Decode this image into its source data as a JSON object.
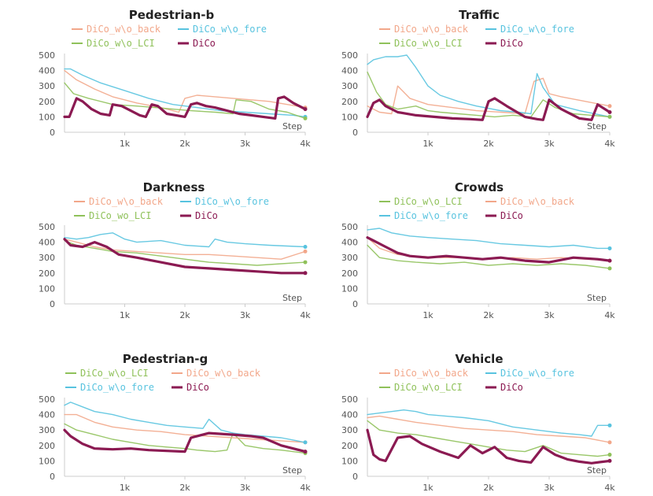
{
  "colors": {
    "DiCo_w\\o_back": "#f2a78a",
    "DiCo_w\\o_fore": "#58c3df",
    "DiCo_w\\o_LCI": "#8fc15a",
    "DiCo_wo_LCI": "#8fc15a",
    "DiCo": "#8b1a52"
  },
  "chart_data": [
    {
      "type": "line",
      "title": "Pedestrian-b",
      "legend": [
        [
          "DiCo_w\\o_back",
          "DiCo_w\\o_fore"
        ],
        [
          "DiCo_w\\o_LCI",
          "DiCo"
        ]
      ],
      "xlabel": "Step",
      "xlim": [
        0,
        4000
      ],
      "ylim": [
        0,
        500
      ],
      "xticks": [
        1000,
        2000,
        3000,
        4000
      ],
      "xtick_labels": [
        "1k",
        "2k",
        "3k",
        "4k"
      ],
      "yticks": [
        0,
        100,
        200,
        300,
        400,
        500
      ],
      "series": [
        {
          "name": "DiCo_w\\o_back",
          "x": [
            0,
            200,
            500,
            800,
            1200,
            1600,
            1900,
            2000,
            2200,
            2500,
            2800,
            3100,
            3400,
            3700,
            4000
          ],
          "y": [
            400,
            340,
            280,
            230,
            190,
            160,
            130,
            220,
            240,
            230,
            220,
            210,
            200,
            180,
            160
          ]
        },
        {
          "name": "DiCo_w\\o_fore",
          "x": [
            0,
            100,
            300,
            600,
            1000,
            1400,
            1800,
            2200,
            2600,
            3000,
            3400,
            3800,
            4000
          ],
          "y": [
            410,
            410,
            370,
            320,
            270,
            220,
            180,
            160,
            140,
            130,
            120,
            110,
            100
          ]
        },
        {
          "name": "DiCo_w\\o_LCI",
          "x": [
            0,
            150,
            400,
            800,
            1200,
            1500,
            1800,
            2100,
            2500,
            2800,
            2850,
            3100,
            3400,
            3700,
            4000
          ],
          "y": [
            320,
            250,
            220,
            180,
            170,
            160,
            150,
            140,
            130,
            120,
            210,
            200,
            150,
            130,
            90
          ]
        },
        {
          "name": "DiCo",
          "x": [
            0,
            80,
            200,
            300,
            450,
            600,
            750,
            800,
            950,
            1100,
            1250,
            1350,
            1450,
            1550,
            1700,
            1850,
            2000,
            2100,
            2200,
            2350,
            2500,
            2700,
            2900,
            3100,
            3300,
            3500,
            3550,
            3650,
            3800,
            4000
          ],
          "y": [
            100,
            100,
            220,
            200,
            150,
            120,
            110,
            180,
            170,
            140,
            110,
            100,
            180,
            170,
            120,
            110,
            100,
            180,
            190,
            170,
            160,
            140,
            120,
            110,
            100,
            90,
            220,
            230,
            190,
            150
          ]
        }
      ]
    },
    {
      "type": "line",
      "title": "Traffic",
      "legend": [
        [
          "DiCo_w\\o_back",
          "DiCo_w\\o_fore"
        ],
        [
          "DiCo_w\\o_LCI",
          "DiCo"
        ]
      ],
      "xlabel": "Step",
      "xlim": [
        0,
        4000
      ],
      "ylim": [
        0,
        500
      ],
      "xticks": [
        1000,
        2000,
        3000,
        4000
      ],
      "xtick_labels": [
        "1k",
        "2k",
        "3k",
        "4k"
      ],
      "yticks": [
        0,
        100,
        200,
        300,
        400,
        500
      ],
      "series": [
        {
          "name": "DiCo_w\\o_back",
          "x": [
            0,
            200,
            400,
            500,
            700,
            1000,
            1400,
            1800,
            2200,
            2600,
            2750,
            2900,
            3000,
            3200,
            3600,
            4000
          ],
          "y": [
            170,
            130,
            120,
            300,
            220,
            180,
            160,
            140,
            130,
            120,
            330,
            350,
            250,
            230,
            200,
            170
          ]
        },
        {
          "name": "DiCo_w\\o_fore",
          "x": [
            0,
            100,
            300,
            500,
            650,
            800,
            1000,
            1200,
            1500,
            1800,
            2200,
            2500,
            2700,
            2800,
            2900,
            3100,
            3500,
            4000
          ],
          "y": [
            440,
            470,
            490,
            490,
            500,
            420,
            300,
            240,
            200,
            170,
            140,
            130,
            120,
            380,
            290,
            180,
            140,
            100
          ]
        },
        {
          "name": "DiCo_w\\o_LCI",
          "x": [
            0,
            150,
            300,
            500,
            800,
            1000,
            1200,
            1500,
            1800,
            2100,
            2400,
            2700,
            2900,
            3100,
            3400,
            3700,
            4000
          ],
          "y": [
            390,
            260,
            180,
            150,
            170,
            140,
            130,
            120,
            110,
            100,
            110,
            100,
            210,
            160,
            120,
            110,
            100
          ]
        },
        {
          "name": "DiCo",
          "x": [
            0,
            100,
            200,
            300,
            500,
            800,
            1100,
            1400,
            1700,
            1900,
            2000,
            2100,
            2300,
            2600,
            2800,
            2900,
            3000,
            3200,
            3500,
            3700,
            3800,
            4000
          ],
          "y": [
            100,
            190,
            210,
            170,
            130,
            110,
            100,
            90,
            85,
            80,
            200,
            220,
            170,
            100,
            85,
            80,
            210,
            150,
            90,
            80,
            180,
            130
          ]
        }
      ]
    },
    {
      "type": "line",
      "title": "Darkness",
      "legend": [
        [
          "DiCo_w\\o_back",
          "DiCo_w\\o_fore"
        ],
        [
          "DiCo_wo_LCI",
          "DiCo"
        ]
      ],
      "xlabel": "Step",
      "xlim": [
        0,
        4000
      ],
      "ylim": [
        0,
        500
      ],
      "xticks": [
        1000,
        2000,
        3000,
        4000
      ],
      "xtick_labels": [
        "1k",
        "2k",
        "3k",
        "4k"
      ],
      "yticks": [
        0,
        100,
        200,
        300,
        400,
        500
      ],
      "series": [
        {
          "name": "DiCo_w\\o_back",
          "x": [
            0,
            200,
            500,
            800,
            1200,
            1600,
            2000,
            2400,
            2800,
            3200,
            3600,
            4000
          ],
          "y": [
            420,
            400,
            370,
            350,
            340,
            330,
            320,
            320,
            310,
            300,
            290,
            340
          ]
        },
        {
          "name": "DiCo_w\\o_fore",
          "x": [
            0,
            200,
            400,
            600,
            800,
            1000,
            1200,
            1600,
            2000,
            2400,
            2500,
            2700,
            3000,
            3400,
            4000
          ],
          "y": [
            430,
            420,
            430,
            450,
            460,
            420,
            400,
            410,
            380,
            370,
            420,
            400,
            390,
            380,
            370
          ]
        },
        {
          "name": "DiCo_wo_LCI",
          "x": [
            0,
            200,
            500,
            800,
            1200,
            1600,
            2000,
            2400,
            2800,
            3200,
            3600,
            4000
          ],
          "y": [
            410,
            380,
            360,
            340,
            330,
            310,
            290,
            270,
            260,
            250,
            260,
            270
          ]
        },
        {
          "name": "DiCo",
          "x": [
            0,
            100,
            300,
            500,
            700,
            900,
            1200,
            1600,
            2000,
            2400,
            2800,
            3200,
            3600,
            4000
          ],
          "y": [
            420,
            380,
            370,
            400,
            370,
            320,
            300,
            270,
            240,
            230,
            220,
            210,
            200,
            200
          ]
        }
      ]
    },
    {
      "type": "line",
      "title": "Crowds",
      "legend": [
        [
          "DiCo_w\\o_LCI",
          "DiCo_w\\o_back"
        ],
        [
          "DiCo_w\\o_fore",
          "DiCo"
        ]
      ],
      "xlabel": "Step",
      "xlim": [
        0,
        4000
      ],
      "ylim": [
        0,
        500
      ],
      "xticks": [
        1000,
        2000,
        3000,
        4000
      ],
      "xtick_labels": [
        "1k",
        "2k",
        "3k",
        "4k"
      ],
      "yticks": [
        0,
        100,
        200,
        300,
        400,
        500
      ],
      "series": [
        {
          "name": "DiCo_w\\o_LCI",
          "x": [
            0,
            200,
            500,
            800,
            1200,
            1600,
            2000,
            2400,
            2800,
            3200,
            3600,
            4000
          ],
          "y": [
            380,
            300,
            280,
            270,
            260,
            270,
            250,
            260,
            250,
            260,
            250,
            230
          ]
        },
        {
          "name": "DiCo_w\\o_back",
          "x": [
            0,
            200,
            500,
            800,
            1200,
            1600,
            2000,
            2400,
            2800,
            3200,
            3600,
            4000
          ],
          "y": [
            430,
            360,
            320,
            310,
            300,
            300,
            290,
            300,
            290,
            300,
            290,
            280
          ]
        },
        {
          "name": "DiCo_w\\o_fore",
          "x": [
            0,
            200,
            400,
            700,
            1000,
            1400,
            1800,
            2200,
            2600,
            3000,
            3400,
            3800,
            4000
          ],
          "y": [
            480,
            490,
            460,
            440,
            430,
            420,
            410,
            390,
            380,
            370,
            380,
            360,
            360
          ]
        },
        {
          "name": "DiCo",
          "x": [
            0,
            100,
            300,
            500,
            700,
            1000,
            1300,
            1600,
            1900,
            2200,
            2600,
            3000,
            3400,
            3800,
            4000
          ],
          "y": [
            430,
            410,
            370,
            330,
            310,
            300,
            310,
            300,
            290,
            300,
            280,
            270,
            300,
            290,
            280
          ]
        }
      ]
    },
    {
      "type": "line",
      "title": "Pedestrian-g",
      "legend": [
        [
          "DiCo_w\\o_LCI",
          "DiCo_w\\o_back"
        ],
        [
          "DiCo_w\\o_fore",
          "DiCo"
        ]
      ],
      "xlabel": "Step",
      "xlim": [
        0,
        4000
      ],
      "ylim": [
        0,
        500
      ],
      "xticks": [
        1000,
        2000,
        3000,
        4000
      ],
      "xtick_labels": [
        "1k",
        "2k",
        "3k",
        "4k"
      ],
      "yticks": [
        0,
        100,
        200,
        300,
        400,
        500
      ],
      "series": [
        {
          "name": "DiCo_w\\o_LCI",
          "x": [
            0,
            200,
            500,
            800,
            1100,
            1400,
            1700,
            2000,
            2200,
            2500,
            2700,
            2800,
            3000,
            3300,
            3600,
            4000
          ],
          "y": [
            340,
            300,
            270,
            240,
            220,
            200,
            190,
            180,
            170,
            160,
            170,
            280,
            200,
            180,
            170,
            150
          ]
        },
        {
          "name": "DiCo_w\\o_back",
          "x": [
            0,
            200,
            500,
            800,
            1200,
            1600,
            2000,
            2400,
            2800,
            3200,
            3600,
            4000
          ],
          "y": [
            400,
            400,
            350,
            320,
            300,
            290,
            270,
            260,
            250,
            240,
            230,
            220
          ]
        },
        {
          "name": "DiCo_w\\o_fore",
          "x": [
            0,
            100,
            300,
            500,
            800,
            1100,
            1400,
            1700,
            2000,
            2300,
            2400,
            2600,
            2800,
            3000,
            3300,
            3600,
            4000
          ],
          "y": [
            460,
            480,
            450,
            420,
            400,
            370,
            350,
            330,
            320,
            310,
            370,
            300,
            280,
            270,
            260,
            250,
            220
          ]
        },
        {
          "name": "DiCo",
          "x": [
            0,
            100,
            300,
            500,
            800,
            1100,
            1400,
            1700,
            2000,
            2100,
            2400,
            2800,
            3100,
            3300,
            3600,
            4000
          ],
          "y": [
            300,
            260,
            210,
            180,
            175,
            180,
            170,
            165,
            160,
            250,
            280,
            270,
            260,
            250,
            200,
            160
          ]
        }
      ]
    },
    {
      "type": "line",
      "title": "Vehicle",
      "legend": [
        [
          "DiCo_w\\o_back",
          "DiCo_w\\o_fore"
        ],
        [
          "DiCo_w\\o_LCI",
          "DiCo"
        ]
      ],
      "xlabel": "Step",
      "xlim": [
        0,
        4000
      ],
      "ylim": [
        0,
        500
      ],
      "xticks": [
        1000,
        2000,
        3000,
        4000
      ],
      "xtick_labels": [
        "1k",
        "2k",
        "3k",
        "4k"
      ],
      "yticks": [
        0,
        100,
        200,
        300,
        400,
        500
      ],
      "series": [
        {
          "name": "DiCo_w\\o_back",
          "x": [
            0,
            200,
            500,
            800,
            1200,
            1600,
            2000,
            2400,
            2800,
            3200,
            3600,
            4000
          ],
          "y": [
            380,
            390,
            370,
            350,
            330,
            310,
            300,
            290,
            270,
            260,
            250,
            220
          ]
        },
        {
          "name": "DiCo_w\\o_fore",
          "x": [
            0,
            200,
            400,
            600,
            800,
            1000,
            1300,
            1600,
            2000,
            2400,
            2800,
            3200,
            3500,
            3700,
            3800,
            4000
          ],
          "y": [
            400,
            410,
            420,
            430,
            420,
            400,
            390,
            380,
            360,
            320,
            300,
            280,
            270,
            260,
            330,
            330
          ]
        },
        {
          "name": "DiCo_w\\o_LCI",
          "x": [
            0,
            200,
            500,
            800,
            1100,
            1400,
            1700,
            2000,
            2300,
            2600,
            2900,
            3200,
            3500,
            3800,
            4000
          ],
          "y": [
            360,
            300,
            280,
            270,
            250,
            230,
            210,
            190,
            170,
            160,
            200,
            150,
            140,
            130,
            140
          ]
        },
        {
          "name": "DiCo",
          "x": [
            0,
            100,
            200,
            300,
            500,
            700,
            900,
            1200,
            1500,
            1700,
            1900,
            2100,
            2300,
            2500,
            2700,
            2900,
            3100,
            3300,
            3500,
            3700,
            4000
          ],
          "y": [
            300,
            140,
            110,
            100,
            250,
            260,
            210,
            160,
            120,
            200,
            150,
            190,
            120,
            100,
            90,
            190,
            140,
            110,
            95,
            85,
            100
          ]
        }
      ]
    }
  ]
}
